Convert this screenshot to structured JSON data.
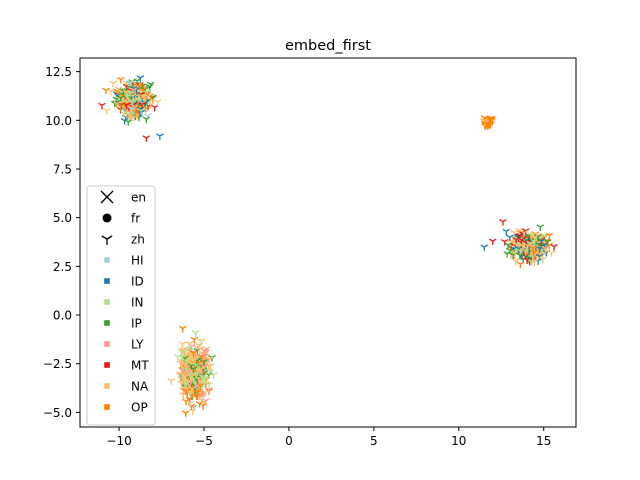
{
  "chart_data": {
    "type": "scatter",
    "title": "embed_first",
    "xlabel": "",
    "ylabel": "",
    "xlim": [
      -12.3,
      16.9
    ],
    "ylim": [
      -5.75,
      13.2
    ],
    "x_ticks": [
      -10,
      -5,
      0,
      5,
      10,
      15
    ],
    "y_ticks": [
      -5.0,
      -2.5,
      0.0,
      2.5,
      5.0,
      7.5,
      10.0,
      12.5
    ],
    "x_tick_labels": [
      "−10",
      "−5",
      "0",
      "5",
      "10",
      "15"
    ],
    "y_tick_labels": [
      "−5.0",
      "−2.5",
      "0.0",
      "2.5",
      "5.0",
      "7.5",
      "10.0",
      "12.5"
    ],
    "grid": false,
    "legend_position": "center-left",
    "languages": [
      {
        "label": "en",
        "marker": "x"
      },
      {
        "label": "fr",
        "marker": "circle"
      },
      {
        "label": "zh",
        "marker": "tri_down"
      }
    ],
    "categories": [
      {
        "label": "HI",
        "color": "#a6cee3"
      },
      {
        "label": "ID",
        "color": "#1f78b4"
      },
      {
        "label": "IN",
        "color": "#b2df8a"
      },
      {
        "label": "IP",
        "color": "#33a02c"
      },
      {
        "label": "LY",
        "color": "#fb9a99"
      },
      {
        "label": "MT",
        "color": "#e31a1c"
      },
      {
        "label": "NA",
        "color": "#fdbf6f"
      },
      {
        "label": "OP",
        "color": "#ff7f00"
      }
    ],
    "clusters": [
      {
        "language": "fr",
        "cx": -9.2,
        "cy": 11.1,
        "sx": 0.75,
        "sy": 0.65,
        "mix": [
          "NA",
          "IP",
          "OP",
          "IN",
          "MT",
          "ID",
          "HI"
        ]
      },
      {
        "language": "en",
        "cx": -5.6,
        "cy": -2.9,
        "sx": 0.7,
        "sy": 1.05,
        "mix": [
          "NA",
          "OP",
          "IN",
          "IP",
          "LY"
        ]
      },
      {
        "language": "zh",
        "cx": 14.2,
        "cy": 3.5,
        "sx": 0.75,
        "sy": 0.5,
        "mix": [
          "NA",
          "IN",
          "OP",
          "IP",
          "ID",
          "MT"
        ]
      },
      {
        "language": "zh",
        "cx": 11.7,
        "cy": 9.9,
        "sx": 0.2,
        "sy": 0.2,
        "mix": [
          "OP",
          "NA"
        ]
      }
    ],
    "points": [
      {
        "x": 11.5,
        "y": 3.5,
        "language": "zh",
        "category": "ID"
      },
      {
        "x": 12.0,
        "y": 3.8,
        "language": "zh",
        "category": "MT"
      },
      {
        "x": 12.6,
        "y": 4.8,
        "language": "zh",
        "category": "MT"
      },
      {
        "x": 12.8,
        "y": 4.3,
        "language": "zh",
        "category": "ID"
      },
      {
        "x": 13.0,
        "y": 4.0,
        "language": "zh",
        "category": "ID"
      },
      {
        "x": 12.9,
        "y": 3.6,
        "language": "zh",
        "category": "IP"
      },
      {
        "x": -7.6,
        "y": 9.2,
        "language": "fr",
        "category": "ID"
      },
      {
        "x": -8.4,
        "y": 9.1,
        "language": "fr",
        "category": "MT"
      },
      {
        "x": -4.9,
        "y": -4.4,
        "language": "en",
        "category": "LY"
      }
    ]
  }
}
